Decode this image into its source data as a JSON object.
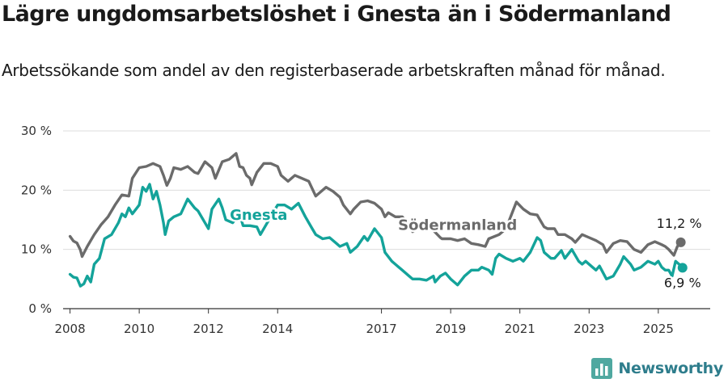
{
  "title": "Lägre ungdomsarbetslöshet i Gnesta än i Södermanland",
  "subtitle": "Arbetssökande som andel av den registerbaserade arbetskraften månad för månad.",
  "brand": {
    "name": "Newsworthy",
    "icon": "bar-chart-logo-icon"
  },
  "chart_data": {
    "type": "line",
    "ylim": [
      0,
      30
    ],
    "xlim": [
      2007.8,
      2026.5
    ],
    "grid": true,
    "y_ticks": [
      0,
      10,
      20,
      30
    ],
    "y_tick_labels": [
      "0 %",
      "10 %",
      "20 %",
      "30 %"
    ],
    "x_ticks": [
      2008,
      2010,
      2012,
      2014,
      2017,
      2019,
      2021,
      2023,
      2025
    ],
    "x_tick_labels": [
      "2008",
      "2010",
      "2012",
      "2014",
      "2017",
      "2019",
      "2021",
      "2023",
      "2025"
    ],
    "series": [
      {
        "name": "Södermanland",
        "color": "#6b6b6b",
        "last_label": "11,2 %",
        "points": [
          [
            2008.0,
            12.2
          ],
          [
            2008.1,
            11.4
          ],
          [
            2008.2,
            11.1
          ],
          [
            2008.3,
            9.9
          ],
          [
            2008.35,
            8.8
          ],
          [
            2008.5,
            10.5
          ],
          [
            2008.7,
            12.5
          ],
          [
            2008.9,
            14.2
          ],
          [
            2009.1,
            15.5
          ],
          [
            2009.3,
            17.5
          ],
          [
            2009.5,
            19.2
          ],
          [
            2009.7,
            19.0
          ],
          [
            2009.8,
            22.0
          ],
          [
            2010.0,
            23.8
          ],
          [
            2010.2,
            24.0
          ],
          [
            2010.4,
            24.5
          ],
          [
            2010.6,
            24.0
          ],
          [
            2010.7,
            22.5
          ],
          [
            2010.8,
            20.8
          ],
          [
            2010.9,
            22.0
          ],
          [
            2011.0,
            23.8
          ],
          [
            2011.2,
            23.5
          ],
          [
            2011.4,
            24.0
          ],
          [
            2011.6,
            23.0
          ],
          [
            2011.7,
            22.8
          ],
          [
            2011.9,
            24.8
          ],
          [
            2012.1,
            23.8
          ],
          [
            2012.2,
            22.0
          ],
          [
            2012.4,
            24.8
          ],
          [
            2012.6,
            25.2
          ],
          [
            2012.8,
            26.2
          ],
          [
            2012.9,
            24.0
          ],
          [
            2013.0,
            23.8
          ],
          [
            2013.1,
            22.5
          ],
          [
            2013.2,
            22.0
          ],
          [
            2013.25,
            20.9
          ],
          [
            2013.4,
            23.0
          ],
          [
            2013.6,
            24.5
          ],
          [
            2013.8,
            24.5
          ],
          [
            2014.0,
            24.0
          ],
          [
            2014.1,
            22.5
          ],
          [
            2014.3,
            21.5
          ],
          [
            2014.5,
            22.5
          ],
          [
            2014.7,
            22.0
          ],
          [
            2014.9,
            21.5
          ],
          [
            2015.1,
            19.0
          ],
          [
            2015.2,
            19.5
          ],
          [
            2015.4,
            20.5
          ],
          [
            2015.6,
            19.8
          ],
          [
            2015.8,
            18.8
          ],
          [
            2015.9,
            17.5
          ],
          [
            2016.1,
            16.0
          ],
          [
            2016.2,
            16.8
          ],
          [
            2016.4,
            18.0
          ],
          [
            2016.6,
            18.2
          ],
          [
            2016.8,
            17.8
          ],
          [
            2017.0,
            16.8
          ],
          [
            2017.1,
            15.5
          ],
          [
            2017.2,
            16.2
          ],
          [
            2017.4,
            15.5
          ],
          [
            2017.6,
            15.5
          ],
          [
            2017.8,
            14.0
          ],
          [
            2017.9,
            13.0
          ],
          [
            2018.1,
            13.8
          ],
          [
            2018.3,
            14.5
          ],
          [
            2018.5,
            13.2
          ],
          [
            2018.7,
            12.0
          ],
          [
            2018.75,
            11.8
          ],
          [
            2019.0,
            11.8
          ],
          [
            2019.2,
            11.5
          ],
          [
            2019.4,
            11.8
          ],
          [
            2019.6,
            11.0
          ],
          [
            2019.8,
            10.8
          ],
          [
            2020.0,
            10.5
          ],
          [
            2020.1,
            11.8
          ],
          [
            2020.4,
            12.5
          ],
          [
            2020.6,
            13.5
          ],
          [
            2020.8,
            16.5
          ],
          [
            2020.9,
            18.0
          ],
          [
            2021.1,
            16.8
          ],
          [
            2021.3,
            16.0
          ],
          [
            2021.5,
            15.8
          ],
          [
            2021.7,
            13.8
          ],
          [
            2021.8,
            13.5
          ],
          [
            2022.0,
            13.5
          ],
          [
            2022.1,
            12.5
          ],
          [
            2022.3,
            12.5
          ],
          [
            2022.5,
            11.8
          ],
          [
            2022.6,
            11.2
          ],
          [
            2022.8,
            12.5
          ],
          [
            2023.0,
            12.0
          ],
          [
            2023.2,
            11.5
          ],
          [
            2023.4,
            10.8
          ],
          [
            2023.5,
            9.5
          ],
          [
            2023.7,
            11.0
          ],
          [
            2023.9,
            11.5
          ],
          [
            2024.1,
            11.3
          ],
          [
            2024.3,
            10.0
          ],
          [
            2024.5,
            9.5
          ],
          [
            2024.7,
            10.8
          ],
          [
            2024.9,
            11.3
          ],
          [
            2025.1,
            10.8
          ],
          [
            2025.2,
            10.5
          ],
          [
            2025.3,
            10.0
          ],
          [
            2025.45,
            9.0
          ],
          [
            2025.55,
            10.5
          ],
          [
            2025.65,
            11.2
          ]
        ]
      },
      {
        "name": "Gnesta",
        "color": "#14a39a",
        "last_label": "6,9 %",
        "points": [
          [
            2008.0,
            5.8
          ],
          [
            2008.1,
            5.3
          ],
          [
            2008.2,
            5.2
          ],
          [
            2008.3,
            3.8
          ],
          [
            2008.4,
            4.2
          ],
          [
            2008.5,
            5.5
          ],
          [
            2008.6,
            4.5
          ],
          [
            2008.7,
            7.5
          ],
          [
            2008.85,
            8.5
          ],
          [
            2009.0,
            11.8
          ],
          [
            2009.2,
            12.5
          ],
          [
            2009.4,
            14.5
          ],
          [
            2009.5,
            16.0
          ],
          [
            2009.6,
            15.5
          ],
          [
            2009.7,
            17.0
          ],
          [
            2009.8,
            16.0
          ],
          [
            2010.0,
            17.5
          ],
          [
            2010.1,
            20.5
          ],
          [
            2010.2,
            19.8
          ],
          [
            2010.3,
            21.0
          ],
          [
            2010.4,
            18.5
          ],
          [
            2010.5,
            19.8
          ],
          [
            2010.6,
            17.5
          ],
          [
            2010.7,
            14.5
          ],
          [
            2010.75,
            12.5
          ],
          [
            2010.85,
            14.8
          ],
          [
            2011.0,
            15.5
          ],
          [
            2011.2,
            16.0
          ],
          [
            2011.4,
            18.5
          ],
          [
            2011.6,
            17.0
          ],
          [
            2011.7,
            16.5
          ],
          [
            2011.9,
            14.5
          ],
          [
            2012.0,
            13.5
          ],
          [
            2012.1,
            16.8
          ],
          [
            2012.3,
            18.5
          ],
          [
            2012.4,
            17.0
          ],
          [
            2012.5,
            15.0
          ],
          [
            2012.7,
            14.5
          ],
          [
            2012.9,
            16.0
          ],
          [
            2013.0,
            14.0
          ],
          [
            2013.2,
            14.0
          ],
          [
            2013.4,
            13.8
          ],
          [
            2013.5,
            12.5
          ],
          [
            2013.7,
            14.5
          ],
          [
            2013.9,
            16.5
          ],
          [
            2014.0,
            17.5
          ],
          [
            2014.2,
            17.5
          ],
          [
            2014.4,
            16.8
          ],
          [
            2014.6,
            17.8
          ],
          [
            2014.8,
            15.5
          ],
          [
            2015.0,
            13.5
          ],
          [
            2015.1,
            12.5
          ],
          [
            2015.3,
            11.8
          ],
          [
            2015.5,
            12.0
          ],
          [
            2015.7,
            11.0
          ],
          [
            2015.8,
            10.5
          ],
          [
            2016.0,
            11.0
          ],
          [
            2016.1,
            9.5
          ],
          [
            2016.3,
            10.5
          ],
          [
            2016.5,
            12.2
          ],
          [
            2016.6,
            11.5
          ],
          [
            2016.8,
            13.5
          ],
          [
            2017.0,
            12.0
          ],
          [
            2017.1,
            9.5
          ],
          [
            2017.3,
            8.0
          ],
          [
            2017.4,
            7.5
          ],
          [
            2017.5,
            7.0
          ],
          [
            2017.6,
            6.5
          ],
          [
            2017.8,
            5.5
          ],
          [
            2017.9,
            5.0
          ],
          [
            2018.1,
            5.0
          ],
          [
            2018.3,
            4.8
          ],
          [
            2018.5,
            5.5
          ],
          [
            2018.55,
            4.5
          ],
          [
            2018.7,
            5.5
          ],
          [
            2018.85,
            6.0
          ],
          [
            2019.0,
            5.0
          ],
          [
            2019.1,
            4.5
          ],
          [
            2019.2,
            4.0
          ],
          [
            2019.4,
            5.5
          ],
          [
            2019.6,
            6.5
          ],
          [
            2019.8,
            6.5
          ],
          [
            2019.9,
            7.0
          ],
          [
            2020.1,
            6.5
          ],
          [
            2020.2,
            5.8
          ],
          [
            2020.3,
            8.5
          ],
          [
            2020.4,
            9.2
          ],
          [
            2020.6,
            8.5
          ],
          [
            2020.8,
            8.0
          ],
          [
            2021.0,
            8.5
          ],
          [
            2021.1,
            8.0
          ],
          [
            2021.3,
            9.5
          ],
          [
            2021.5,
            12.0
          ],
          [
            2021.6,
            11.5
          ],
          [
            2021.7,
            9.5
          ],
          [
            2021.9,
            8.5
          ],
          [
            2022.0,
            8.5
          ],
          [
            2022.2,
            9.8
          ],
          [
            2022.3,
            8.5
          ],
          [
            2022.5,
            10.0
          ],
          [
            2022.7,
            8.0
          ],
          [
            2022.8,
            7.5
          ],
          [
            2022.9,
            8.0
          ],
          [
            2023.1,
            7.0
          ],
          [
            2023.2,
            6.5
          ],
          [
            2023.3,
            7.2
          ],
          [
            2023.5,
            5.0
          ],
          [
            2023.7,
            5.5
          ],
          [
            2023.9,
            7.5
          ],
          [
            2024.0,
            8.8
          ],
          [
            2024.2,
            7.5
          ],
          [
            2024.3,
            6.5
          ],
          [
            2024.5,
            7.0
          ],
          [
            2024.7,
            8.0
          ],
          [
            2024.9,
            7.5
          ],
          [
            2025.0,
            8.0
          ],
          [
            2025.1,
            7.0
          ],
          [
            2025.2,
            6.5
          ],
          [
            2025.3,
            6.5
          ],
          [
            2025.4,
            5.5
          ],
          [
            2025.5,
            8.0
          ],
          [
            2025.6,
            7.5
          ],
          [
            2025.7,
            6.9
          ]
        ],
        "inline_label_at": [
          2013.45,
          15.0
        ]
      }
    ],
    "inline_labels": {
      "Södermanland": {
        "at": [
          2019.2,
          13.3
        ]
      },
      "Gnesta": {
        "at": [
          2013.45,
          15.0
        ]
      }
    }
  }
}
